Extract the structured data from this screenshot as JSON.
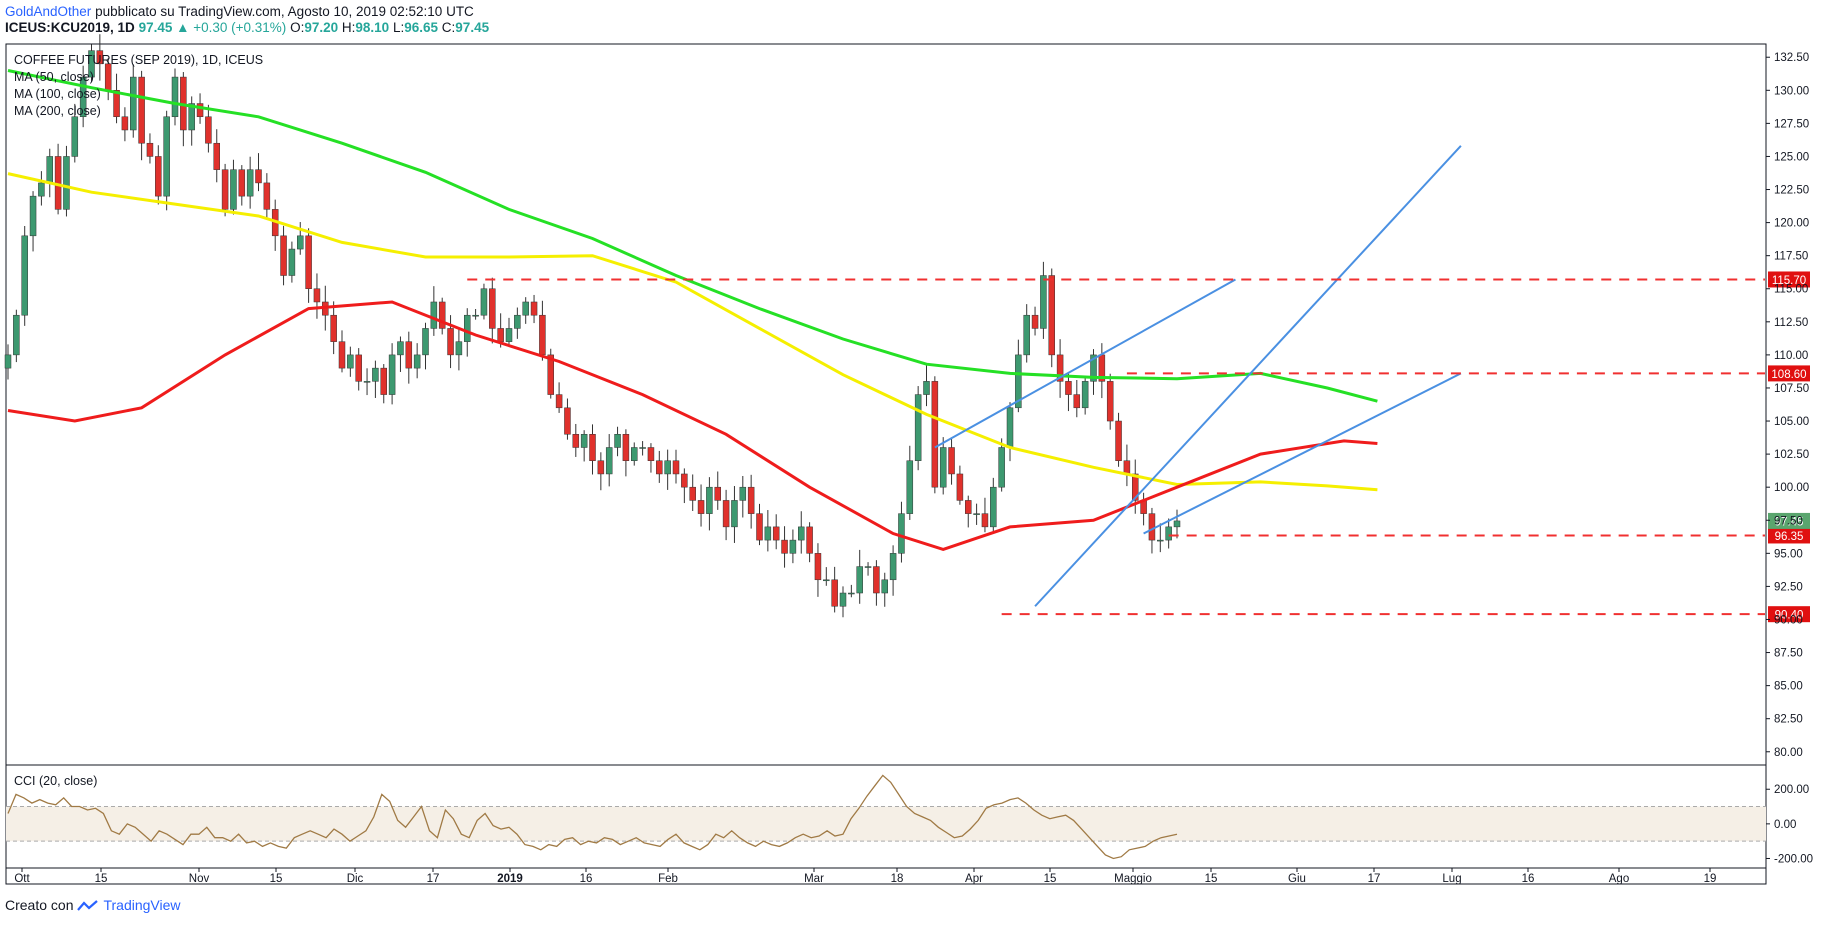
{
  "header": {
    "author": "GoldAndOther",
    "published": " pubblicato su TradingView.com, Agosto 10, 2019 02:52:10 UTC",
    "symbol": "ICEUS:KCU2019, 1D",
    "last": "97.45",
    "change": "▲ +0.30 (+0.31%)",
    "o_label": "O:",
    "o": "97.20",
    "h_label": "H:",
    "h": "98.10",
    "l_label": "L:",
    "l": "96.65",
    "c_label": "C:",
    "c": "97.45"
  },
  "legend": {
    "title": "COFFEE FUTURES (SEP 2019), 1D, ICEUS",
    "ma50": "MA (50, close)",
    "ma100": "MA (100, close)",
    "ma200": "MA (200, close)",
    "cci": "CCI (20, close)"
  },
  "footer": {
    "created": "Creato con",
    "brand": "TradingView"
  },
  "colors": {
    "up": "#3d9970",
    "down": "#e0312c",
    "ma50": "#ef1c1c",
    "ma100": "#f5ef00",
    "ma200": "#25e025",
    "trend": "#4a90e2",
    "level": "#f03030",
    "cci": "#a07a45",
    "cci_band": "#f5efe6"
  },
  "chart_data": {
    "type": "candlestick",
    "price_axis": {
      "min": 79,
      "max": 133.5,
      "ticks": [
        "132.50",
        "130.00",
        "127.50",
        "125.00",
        "122.50",
        "120.00",
        "117.50",
        "115.00",
        "112.50",
        "110.00",
        "107.50",
        "105.00",
        "102.50",
        "100.00",
        "97.50",
        "95.00",
        "92.50",
        "90.00",
        "87.50",
        "85.00",
        "82.50",
        "80.00"
      ]
    },
    "time_axis": {
      "labels": [
        "Ott",
        "15",
        "Nov",
        "15",
        "Dic",
        "17",
        "2019",
        "16",
        "Feb",
        "Mar",
        "18",
        "Apr",
        "15",
        "Maggio",
        "15",
        "Giu",
        "17",
        "Lug",
        "16",
        "Ago",
        "19"
      ]
    },
    "horizontal_levels": [
      "115.70",
      "108.60",
      "96.35",
      "90.40"
    ],
    "last_price": "97.45",
    "close_series": [
      110,
      113,
      119,
      122,
      123,
      125,
      121,
      125,
      128,
      131,
      133,
      132,
      130,
      128,
      127,
      131,
      126,
      125,
      122,
      128,
      131,
      127,
      129,
      128,
      126,
      124,
      121,
      124,
      122,
      124,
      123,
      121,
      119,
      116,
      118,
      119,
      115,
      114,
      113,
      111,
      109,
      110,
      108,
      108,
      109,
      107,
      110,
      111,
      109,
      110,
      112,
      114,
      112,
      110,
      111,
      113,
      113,
      115,
      112,
      111,
      112,
      113,
      114,
      113,
      110,
      107,
      106,
      104,
      103,
      104,
      102,
      101,
      103,
      104,
      102,
      103,
      103,
      102,
      101,
      102,
      101,
      100,
      99,
      98,
      100,
      99,
      97,
      99,
      100,
      98,
      96,
      97,
      96,
      95,
      96,
      97,
      95,
      93,
      93,
      91,
      92,
      92,
      94,
      94,
      92,
      93,
      95,
      98,
      102,
      107,
      108,
      100,
      103,
      101,
      99,
      98,
      98,
      97,
      100,
      103,
      106,
      110,
      113,
      112,
      116,
      110,
      108,
      107,
      106,
      108,
      110,
      108,
      105,
      102,
      101,
      99,
      98,
      96,
      96,
      97,
      97.45
    ],
    "ma50": [
      {
        "d": 0,
        "v": 105.8
      },
      {
        "d": 8,
        "v": 105.0
      },
      {
        "d": 16,
        "v": 106.0
      },
      {
        "d": 26,
        "v": 110.0
      },
      {
        "d": 36,
        "v": 113.5
      },
      {
        "d": 46,
        "v": 114.0
      },
      {
        "d": 56,
        "v": 111.5
      },
      {
        "d": 66,
        "v": 109.5
      },
      {
        "d": 76,
        "v": 107.0
      },
      {
        "d": 86,
        "v": 104.0
      },
      {
        "d": 96,
        "v": 100.0
      },
      {
        "d": 106,
        "v": 96.5
      },
      {
        "d": 112,
        "v": 95.3
      },
      {
        "d": 120,
        "v": 97.0
      },
      {
        "d": 130,
        "v": 97.5
      },
      {
        "d": 140,
        "v": 100.0
      },
      {
        "d": 150,
        "v": 102.5
      },
      {
        "d": 160,
        "v": 103.5
      },
      {
        "d": 164,
        "v": 103.3
      }
    ],
    "ma100": [
      {
        "d": 0,
        "v": 123.7
      },
      {
        "d": 10,
        "v": 122.3
      },
      {
        "d": 20,
        "v": 121.4
      },
      {
        "d": 30,
        "v": 120.5
      },
      {
        "d": 40,
        "v": 118.5
      },
      {
        "d": 50,
        "v": 117.4
      },
      {
        "d": 60,
        "v": 117.4
      },
      {
        "d": 70,
        "v": 117.5
      },
      {
        "d": 80,
        "v": 115.5
      },
      {
        "d": 90,
        "v": 112.0
      },
      {
        "d": 100,
        "v": 108.5
      },
      {
        "d": 110,
        "v": 105.5
      },
      {
        "d": 120,
        "v": 103.0
      },
      {
        "d": 130,
        "v": 101.5
      },
      {
        "d": 140,
        "v": 100.2
      },
      {
        "d": 150,
        "v": 100.4
      },
      {
        "d": 158,
        "v": 100.1
      },
      {
        "d": 164,
        "v": 99.8
      }
    ],
    "ma200": [
      {
        "d": 0,
        "v": 131.5
      },
      {
        "d": 10,
        "v": 130.2
      },
      {
        "d": 20,
        "v": 129.0
      },
      {
        "d": 30,
        "v": 128.0
      },
      {
        "d": 40,
        "v": 126.0
      },
      {
        "d": 50,
        "v": 123.8
      },
      {
        "d": 60,
        "v": 121.0
      },
      {
        "d": 70,
        "v": 118.8
      },
      {
        "d": 80,
        "v": 116.0
      },
      {
        "d": 90,
        "v": 113.5
      },
      {
        "d": 100,
        "v": 111.2
      },
      {
        "d": 110,
        "v": 109.3
      },
      {
        "d": 120,
        "v": 108.6
      },
      {
        "d": 130,
        "v": 108.3
      },
      {
        "d": 140,
        "v": 108.2
      },
      {
        "d": 150,
        "v": 108.6
      },
      {
        "d": 158,
        "v": 107.5
      },
      {
        "d": 164,
        "v": 106.5
      }
    ],
    "trendlines": [
      {
        "from": {
          "d": 111,
          "v": 103.0
        },
        "to": {
          "d": 147,
          "v": 115.7
        }
      },
      {
        "from": {
          "d": 123,
          "v": 91.0
        },
        "to": {
          "d": 174,
          "v": 125.8
        }
      },
      {
        "from": {
          "d": 136,
          "v": 96.5
        },
        "to": {
          "d": 174,
          "v": 108.6
        }
      }
    ],
    "cci": {
      "label": "CCI (20, close)",
      "ticks": [
        "200.00",
        "0.00",
        "-200.00"
      ],
      "band": [
        100,
        -100
      ],
      "range": [
        -255,
        340
      ],
      "values": [
        60,
        170,
        150,
        120,
        140,
        120,
        110,
        150,
        100,
        100,
        80,
        90,
        60,
        -40,
        -60,
        0,
        -20,
        -60,
        -100,
        -40,
        -60,
        -90,
        -120,
        -60,
        -60,
        -20,
        -80,
        -80,
        -100,
        -60,
        -110,
        -100,
        -130,
        -110,
        -130,
        -140,
        -80,
        -60,
        -40,
        -60,
        -80,
        -30,
        -60,
        -100,
        -70,
        -40,
        40,
        170,
        130,
        20,
        -20,
        40,
        100,
        -40,
        -80,
        80,
        30,
        -60,
        -80,
        20,
        60,
        -10,
        -30,
        -20,
        -60,
        -120,
        -130,
        -150,
        -120,
        -130,
        -90,
        -80,
        -120,
        -100,
        -110,
        -80,
        -90,
        -120,
        -100,
        -80,
        -110,
        -120,
        -130,
        -90,
        -60,
        -110,
        -130,
        -150,
        -120,
        -60,
        -80,
        -40,
        -80,
        -110,
        -130,
        -100,
        -120,
        -130,
        -110,
        -80,
        -60,
        -80,
        -70,
        -40,
        -70,
        -60,
        30,
        90,
        160,
        220,
        280,
        240,
        170,
        100,
        60,
        40,
        20,
        -20,
        -50,
        -80,
        -70,
        -30,
        20,
        90,
        110,
        120,
        140,
        150,
        120,
        80,
        50,
        30,
        40,
        50,
        20,
        -30,
        -80,
        -130,
        -180,
        -200,
        -190,
        -150,
        -140,
        -130,
        -100,
        -80,
        -70,
        -60
      ]
    }
  }
}
